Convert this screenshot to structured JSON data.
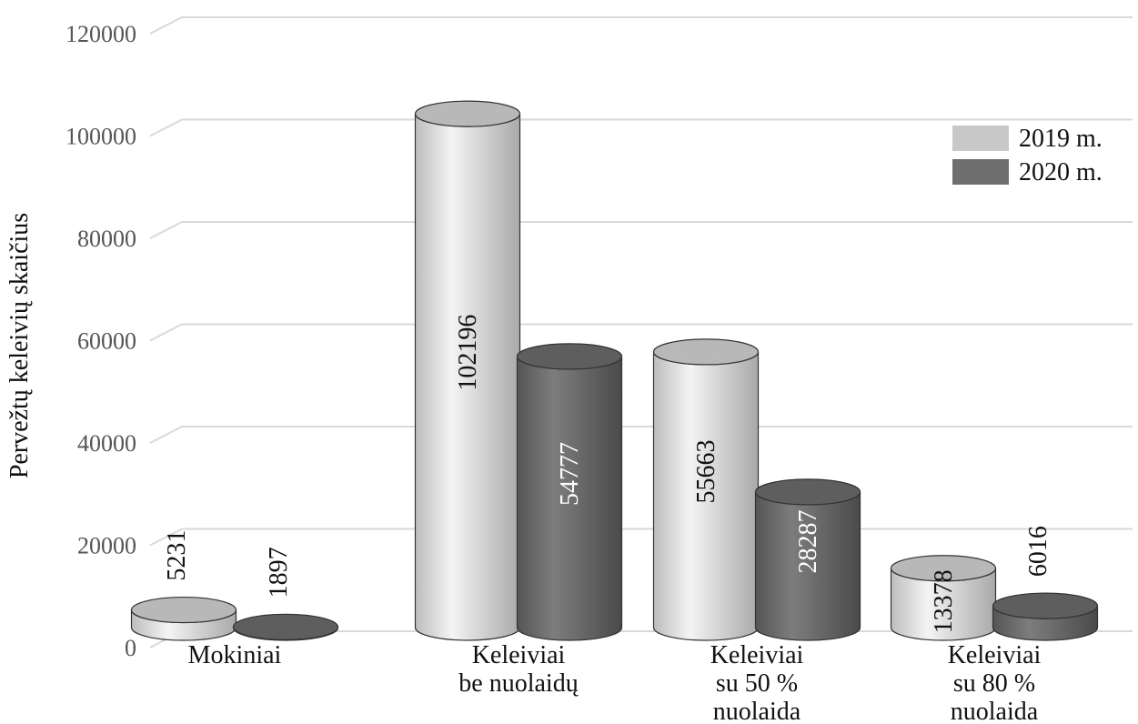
{
  "chart_data": {
    "type": "bar",
    "style": "3d-cylinder",
    "ylabel": "Pervežtų keleivių skaičius",
    "ylim": [
      0,
      120000
    ],
    "yticks": [
      "0",
      "20000",
      "40000",
      "60000",
      "80000",
      "100000",
      "120000"
    ],
    "categories": [
      [
        "Mokiniai"
      ],
      [
        "Keleiviai",
        "be nuolaidų"
      ],
      [
        "Keleiviai",
        "su 50 %",
        "nuolaida"
      ],
      [
        "Keleiviai",
        "su 80 %",
        "nuolaida"
      ]
    ],
    "series": [
      {
        "name": "2019 m.",
        "color": "#c8c8c8",
        "values": [
          5231,
          102196,
          55663,
          13378
        ]
      },
      {
        "name": "2020 m.",
        "color": "#6e6e6e",
        "values": [
          1897,
          54777,
          28287,
          6016
        ]
      }
    ],
    "legend": {
      "position": "top-right",
      "items": [
        "2019 m.",
        "2020 m."
      ]
    },
    "grid": true
  }
}
